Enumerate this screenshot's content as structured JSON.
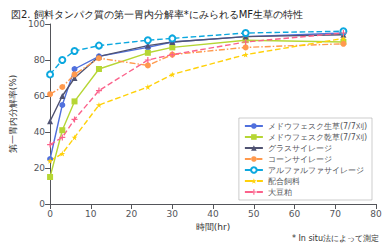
{
  "chart_data": {
    "type": "line",
    "title": "図2. 飼料タンパク質の第一胃内分解率*にみられるMF生草の特性",
    "subtitle": "* In situ法によって測定",
    "ylabel": "第一胃内分解率(%)",
    "xlabel": "時間(hr)",
    "x": [
      0,
      3,
      6,
      12,
      24,
      30,
      48,
      72
    ],
    "xlim": [
      0,
      80
    ],
    "ylim": [
      0,
      100
    ],
    "xticks": [
      0,
      10,
      20,
      30,
      40,
      50,
      60,
      70,
      80
    ],
    "yticks": [
      0,
      20,
      40,
      60,
      80,
      100
    ],
    "grid": false,
    "legend": "lower right",
    "series": [
      {
        "name": "メドウフェスク生草(7/7刈)",
        "values": [
          25,
          55,
          75,
          82,
          87,
          90,
          93,
          95
        ],
        "marker": "circle",
        "line_style": "solid"
      },
      {
        "name": "メドウフェスク乾草(7/7刈)",
        "values": [
          15,
          41,
          57,
          75,
          84,
          87,
          91,
          90
        ],
        "marker": "square",
        "line_style": "solid"
      },
      {
        "name": "グラスサイレージ",
        "values": [
          46,
          60,
          70,
          82,
          88,
          90,
          93,
          94
        ],
        "marker": "triangle",
        "line_style": "solid"
      },
      {
        "name": "コーンサイレージ",
        "values": [
          61,
          65,
          72,
          81,
          77,
          83,
          87,
          89
        ],
        "marker": "circle",
        "line_style": "dashdot"
      },
      {
        "name": "アルファルファサイレージ",
        "values": [
          72,
          80,
          85,
          88,
          91,
          92,
          95,
          96
        ],
        "marker": "open_circle",
        "line_style": "dashed"
      },
      {
        "name": "配合飼料",
        "values": [
          24,
          28,
          37,
          55,
          65,
          72,
          83,
          92
        ],
        "marker": "star",
        "line_style": "dashed"
      },
      {
        "name": "大豆粕",
        "values": [
          33,
          37,
          47,
          63,
          80,
          83,
          90,
          95
        ],
        "marker": "plus",
        "line_style": "dashed"
      }
    ]
  }
}
